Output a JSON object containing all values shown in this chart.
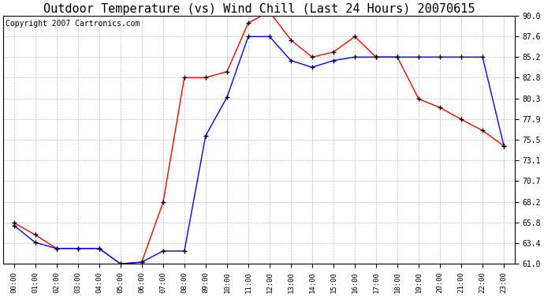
{
  "title": "Outdoor Temperature (vs) Wind Chill (Last 24 Hours) 20070615",
  "copyright": "Copyright 2007 Cartronics.com",
  "hours": [
    "00:00",
    "01:00",
    "02:00",
    "03:00",
    "04:00",
    "05:00",
    "06:00",
    "07:00",
    "08:00",
    "09:00",
    "10:00",
    "11:00",
    "12:00",
    "13:00",
    "14:00",
    "15:00",
    "16:00",
    "17:00",
    "18:00",
    "19:00",
    "20:00",
    "21:00",
    "22:00",
    "23:00"
  ],
  "outdoor_temp": [
    65.8,
    64.4,
    62.8,
    62.8,
    62.8,
    61.0,
    61.2,
    68.2,
    82.8,
    82.8,
    83.5,
    89.2,
    90.5,
    87.2,
    85.2,
    85.8,
    87.6,
    85.2,
    85.2,
    80.3,
    79.3,
    77.9,
    76.6,
    74.8
  ],
  "wind_chill": [
    65.5,
    63.5,
    62.8,
    62.8,
    62.8,
    61.0,
    61.2,
    62.5,
    62.5,
    76.0,
    80.5,
    87.6,
    87.6,
    84.8,
    84.0,
    84.8,
    85.2,
    85.2,
    85.2,
    85.2,
    85.2,
    85.2,
    85.2,
    74.8
  ],
  "ylim": [
    61.0,
    90.0
  ],
  "yticks": [
    61.0,
    63.4,
    65.8,
    68.2,
    70.7,
    73.1,
    75.5,
    77.9,
    80.3,
    82.8,
    85.2,
    87.6,
    90.0
  ],
  "temp_color": "#ff0000",
  "windchill_color": "#0000ff",
  "bg_color": "#ffffff",
  "plot_bg": "#ffffff",
  "grid_color": "#aaaaaa",
  "title_fontsize": 11,
  "copyright_fontsize": 7,
  "figwidth": 6.9,
  "figheight": 3.75,
  "dpi": 100
}
